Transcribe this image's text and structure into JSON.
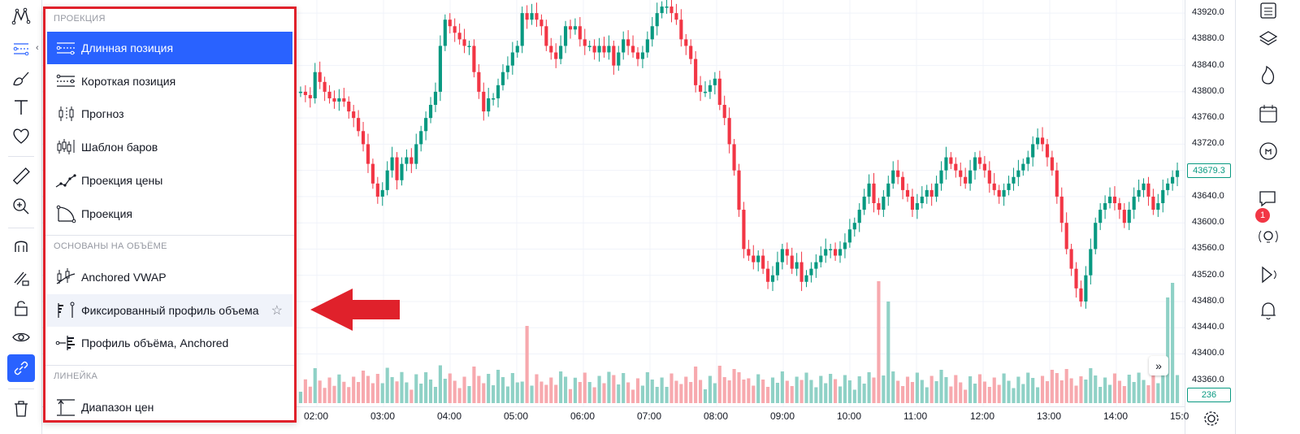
{
  "menu": {
    "sections": [
      {
        "title": "ПРОЕКЦИЯ",
        "items": [
          {
            "label": "Длинная позиция",
            "icon": "long-position-icon",
            "selected": true
          },
          {
            "label": "Короткая позиция",
            "icon": "short-position-icon"
          },
          {
            "label": "Прогноз",
            "icon": "forecast-icon"
          },
          {
            "label": "Шаблон баров",
            "icon": "bars-pattern-icon"
          },
          {
            "label": "Проекция цены",
            "icon": "price-projection-icon"
          },
          {
            "label": "Проекция",
            "icon": "projection-icon"
          }
        ]
      },
      {
        "title": "ОСНОВАНЫ НА ОБЪЁМЕ",
        "items": [
          {
            "label": "Anchored VWAP",
            "icon": "anchored-vwap-icon"
          },
          {
            "label": "Фиксированный профиль объема",
            "icon": "fixed-volume-profile-icon",
            "hovered": true
          },
          {
            "label": "Профиль объёма, Anchored",
            "icon": "anchored-volume-profile-icon"
          }
        ]
      },
      {
        "title": "ЛИНЕЙКА",
        "items": [
          {
            "label": "Диапазон цен",
            "icon": "price-range-icon"
          }
        ]
      }
    ]
  },
  "price_scale": {
    "ticks": [
      "43920.0",
      "43880.0",
      "43840.0",
      "43800.0",
      "43760.0",
      "43720.0",
      "43640.0",
      "43600.0",
      "43560.0",
      "43520.0",
      "43480.0",
      "43440.0",
      "43400.0",
      "43360.0"
    ],
    "last_price": "43679.3",
    "volume_label": "236"
  },
  "time_axis": {
    "ticks": [
      "02:00",
      "03:00",
      "04:00",
      "05:00",
      "06:00",
      "07:00",
      "08:00",
      "09:00",
      "10:00",
      "11:00",
      "12:00",
      "13:00",
      "14:00",
      "15:0"
    ]
  },
  "right_toolbar": {
    "notification_count": "1"
  },
  "colors": {
    "up": "#089981",
    "down": "#f23645",
    "up_volume": "#8fd1c6",
    "down_volume": "#f7a9ae",
    "accent": "#2962ff",
    "highlight_border": "#e0212b"
  },
  "chart_data": {
    "type": "candlestick",
    "approximate_close": [
      43800,
      43795,
      43790,
      43830,
      43815,
      43800,
      43790,
      43785,
      43790,
      43785,
      43770,
      43760,
      43740,
      43720,
      43690,
      43660,
      43640,
      43650,
      43680,
      43700,
      43665,
      43690,
      43700,
      43690,
      43720,
      43740,
      43760,
      43780,
      43800,
      43870,
      43910,
      43900,
      43890,
      43880,
      43870,
      43870,
      43830,
      43800,
      43770,
      43790,
      43790,
      43810,
      43830,
      43840,
      43860,
      43870,
      43920,
      43910,
      43920,
      43910,
      43900,
      43870,
      43860,
      43850,
      43870,
      43900,
      43895,
      43900,
      43880,
      43870,
      43870,
      43860,
      43870,
      43860,
      43870,
      43840,
      43860,
      43880,
      43870,
      43860,
      43850,
      43860,
      43880,
      43900,
      43920,
      43930,
      43930,
      43920,
      43910,
      43880,
      43870,
      43850,
      43810,
      43800,
      43800,
      43810,
      43820,
      43780,
      43760,
      43720,
      43680,
      43620,
      43560,
      43550,
      43540,
      43550,
      43530,
      43510,
      43520,
      43540,
      43560,
      43550,
      43530,
      43540,
      43510,
      43520,
      43530,
      43540,
      43550,
      43560,
      43560,
      43550,
      43560,
      43570,
      43590,
      43600,
      43620,
      43640,
      43660,
      43630,
      43620,
      43640,
      43660,
      43680,
      43670,
      43650,
      43640,
      43620,
      43630,
      43640,
      43650,
      43640,
      43660,
      43680,
      43700,
      43690,
      43680,
      43670,
      43660,
      43680,
      43700,
      43690,
      43680,
      43660,
      43650,
      43640,
      43650,
      43660,
      43670,
      43680,
      43690,
      43700,
      43720,
      43730,
      43720,
      43700,
      43680,
      43640,
      43600,
      43560,
      43530,
      43500,
      43480,
      43520,
      43560,
      43600,
      43620,
      43630,
      43640,
      43630,
      43620,
      43600,
      43620,
      43640,
      43650,
      43660,
      43640,
      43620,
      43630,
      43650,
      43660,
      43670,
      43680
    ],
    "ylim": [
      43320,
      43940
    ]
  }
}
